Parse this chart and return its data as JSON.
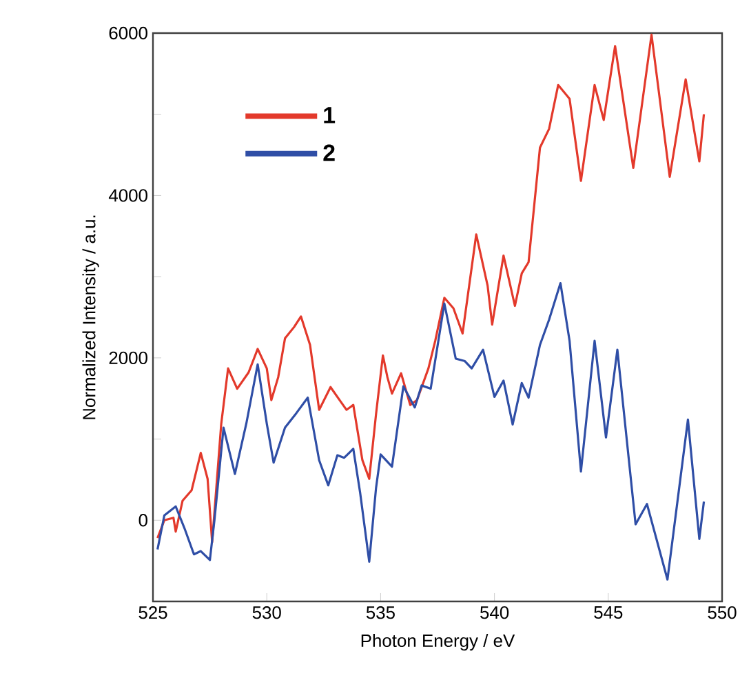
{
  "chart_data": {
    "type": "line",
    "xlabel": "Photon Energy / eV",
    "ylabel": "Normalized Intensity / a.u.",
    "xlim": [
      525,
      550
    ],
    "ylim": [
      -1000,
      6000
    ],
    "xticks": [
      525,
      530,
      535,
      540,
      545,
      550
    ],
    "yticks": [
      0,
      {
        "value": 1000,
        "label": null
      },
      2000,
      {
        "value": 3000,
        "label": null
      },
      4000,
      {
        "value": 5000,
        "label": null
      },
      6000
    ],
    "legend": "top left",
    "grid": false,
    "marker": "none",
    "line_style": "solid",
    "series": [
      {
        "name": "1",
        "color": "#e3392b",
        "x": [
          525.2,
          525.5,
          525.9,
          526.0,
          526.3,
          526.7,
          527.1,
          527.4,
          527.6,
          528.0,
          528.3,
          528.7,
          529.2,
          529.6,
          530.0,
          530.2,
          530.5,
          530.8,
          531.2,
          531.5,
          531.9,
          532.3,
          532.8,
          533.2,
          533.5,
          533.8,
          534.2,
          534.5,
          534.8,
          535.1,
          535.3,
          535.5,
          535.9,
          536.3,
          536.6,
          537.1,
          537.4,
          537.8,
          538.2,
          538.6,
          539.2,
          539.7,
          539.9,
          540.4,
          540.9,
          541.2,
          541.5,
          542.0,
          542.4,
          542.8,
          543.3,
          543.8,
          544.4,
          544.8,
          545.3,
          546.1,
          546.9,
          547.7,
          548.4,
          549.0,
          549.2
        ],
        "values": [
          -220,
          0,
          30,
          -140,
          240,
          370,
          830,
          510,
          -270,
          1190,
          1870,
          1620,
          1820,
          2110,
          1870,
          1480,
          1760,
          2240,
          2380,
          2510,
          2160,
          1360,
          1640,
          1480,
          1360,
          1420,
          740,
          510,
          1310,
          2030,
          1760,
          1560,
          1810,
          1420,
          1480,
          1870,
          2210,
          2740,
          2610,
          2300,
          3520,
          2890,
          2410,
          3260,
          2640,
          3040,
          3180,
          4590,
          4820,
          5360,
          5190,
          4180,
          5360,
          4930,
          5840,
          4340,
          5980,
          4230,
          5430,
          4420,
          5000
        ]
      },
      {
        "name": "2",
        "color": "#2f4ea6",
        "x": [
          525.2,
          525.5,
          526.0,
          526.4,
          526.8,
          527.1,
          527.5,
          527.7,
          528.1,
          528.6,
          529.1,
          529.6,
          530.0,
          530.3,
          530.8,
          531.3,
          531.8,
          532.3,
          532.7,
          533.1,
          533.4,
          533.8,
          534.1,
          534.5,
          534.8,
          535.0,
          535.5,
          536.0,
          536.5,
          536.8,
          537.2,
          537.8,
          538.3,
          538.7,
          539.0,
          539.5,
          540.0,
          540.4,
          540.8,
          541.2,
          541.5,
          542.0,
          542.4,
          542.9,
          543.3,
          543.8,
          544.4,
          544.9,
          545.4,
          546.2,
          546.7,
          547.6,
          548.5,
          549.0,
          549.2
        ],
        "values": [
          -360,
          60,
          170,
          -110,
          -420,
          -380,
          -490,
          0,
          1140,
          570,
          1190,
          1920,
          1190,
          710,
          1140,
          1320,
          1510,
          740,
          430,
          800,
          770,
          880,
          340,
          -510,
          400,
          810,
          660,
          1650,
          1390,
          1660,
          1620,
          2670,
          1990,
          1960,
          1870,
          2100,
          1520,
          1720,
          1180,
          1690,
          1510,
          2160,
          2470,
          2920,
          2210,
          600,
          2210,
          1020,
          2100,
          -50,
          200,
          -730,
          1240,
          -230,
          230
        ]
      }
    ]
  }
}
